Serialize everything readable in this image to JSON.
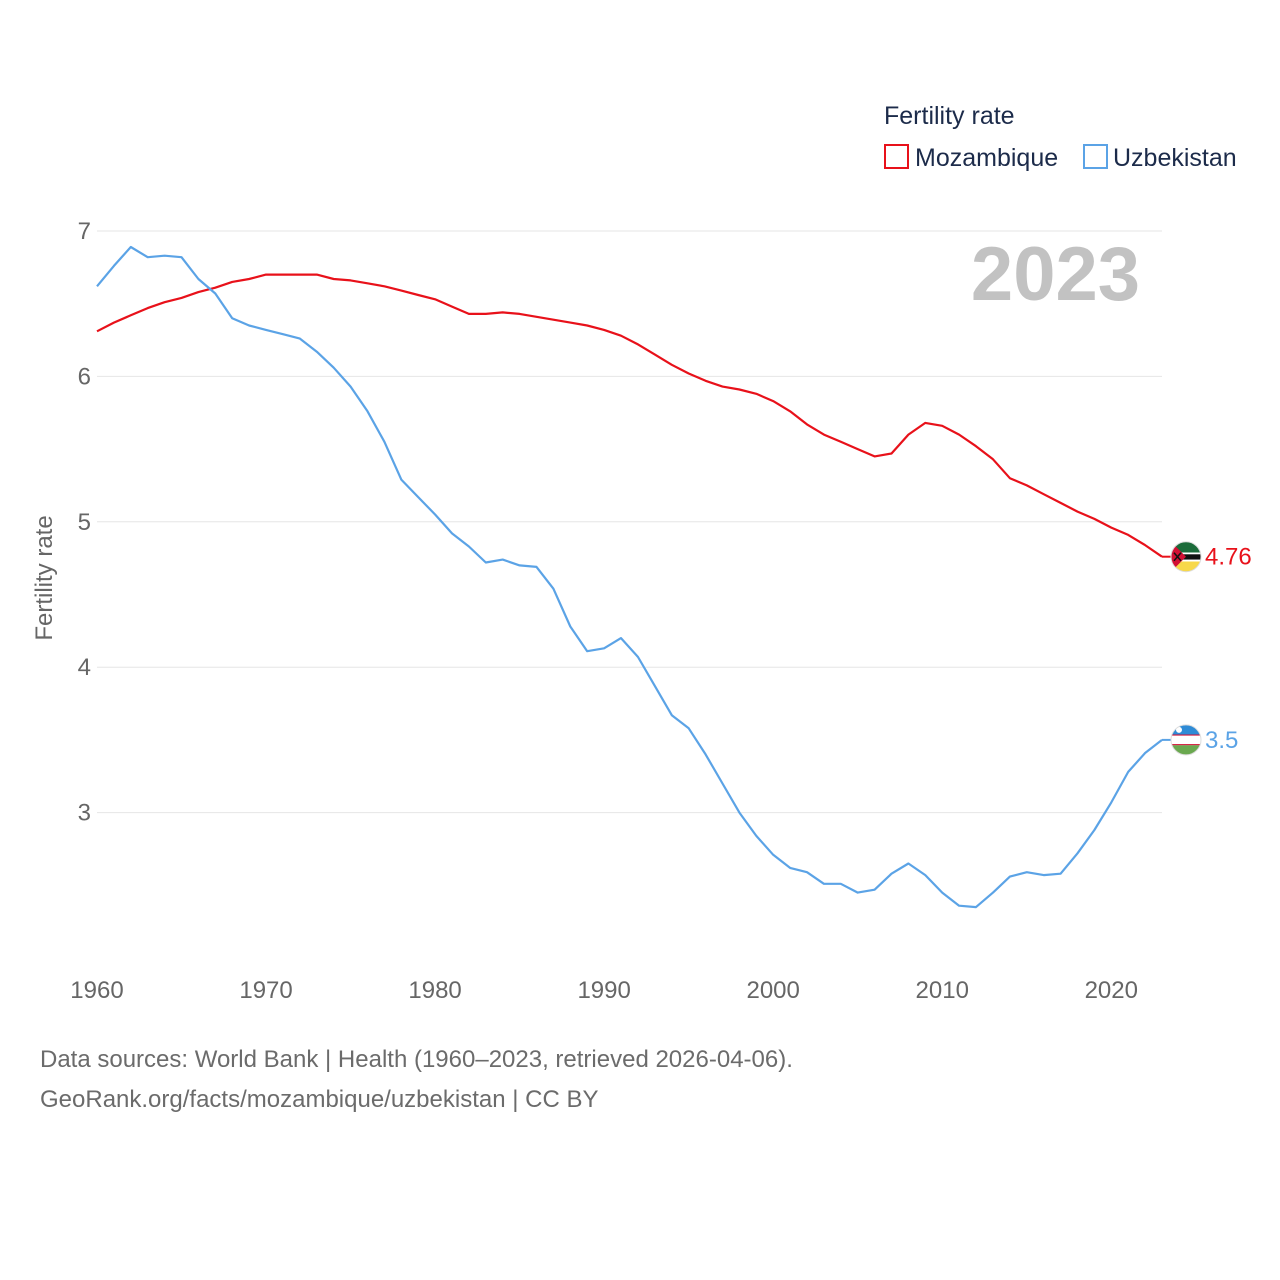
{
  "chart_data": {
    "type": "line",
    "title": "",
    "ylabel": "Fertility rate",
    "xlabel": "",
    "xlim": [
      1960,
      2023
    ],
    "ylim": [
      2,
      7
    ],
    "x_ticks": [
      1960,
      1970,
      1980,
      1990,
      2000,
      2010,
      2020
    ],
    "y_ticks": [
      3,
      4,
      5,
      6,
      7
    ],
    "grid": true,
    "current_year": "2023",
    "legend": {
      "title": "Fertility rate",
      "position": "top-right"
    },
    "x": [
      1960,
      1961,
      1962,
      1963,
      1964,
      1965,
      1966,
      1967,
      1968,
      1969,
      1970,
      1971,
      1972,
      1973,
      1974,
      1975,
      1976,
      1977,
      1978,
      1979,
      1980,
      1981,
      1982,
      1983,
      1984,
      1985,
      1986,
      1987,
      1988,
      1989,
      1990,
      1991,
      1992,
      1993,
      1994,
      1995,
      1996,
      1997,
      1998,
      1999,
      2000,
      2001,
      2002,
      2003,
      2004,
      2005,
      2006,
      2007,
      2008,
      2009,
      2010,
      2011,
      2012,
      2013,
      2014,
      2015,
      2016,
      2017,
      2018,
      2019,
      2020,
      2021,
      2022,
      2023
    ],
    "series": [
      {
        "name": "Mozambique",
        "color": "#e8111a",
        "end_label": "4.76",
        "flag": "mozambique",
        "values": [
          6.31,
          6.37,
          6.42,
          6.47,
          6.51,
          6.54,
          6.58,
          6.61,
          6.65,
          6.67,
          6.7,
          6.7,
          6.7,
          6.7,
          6.67,
          6.66,
          6.64,
          6.62,
          6.59,
          6.56,
          6.53,
          6.48,
          6.43,
          6.43,
          6.44,
          6.43,
          6.41,
          6.39,
          6.37,
          6.35,
          6.32,
          6.28,
          6.22,
          6.15,
          6.08,
          6.02,
          5.97,
          5.93,
          5.91,
          5.88,
          5.83,
          5.76,
          5.67,
          5.6,
          5.55,
          5.5,
          5.45,
          5.47,
          5.6,
          5.68,
          5.66,
          5.6,
          5.52,
          5.43,
          5.3,
          5.25,
          5.19,
          5.13,
          5.07,
          5.02,
          4.96,
          4.91,
          4.84,
          4.76
        ]
      },
      {
        "name": "Uzbekistan",
        "color": "#5ba3e6",
        "end_label": "3.5",
        "flag": "uzbekistan",
        "values": [
          6.62,
          6.76,
          6.89,
          6.82,
          6.83,
          6.82,
          6.67,
          6.57,
          6.4,
          6.35,
          6.32,
          6.29,
          6.26,
          6.17,
          6.06,
          5.93,
          5.76,
          5.55,
          5.29,
          5.17,
          5.05,
          4.92,
          4.83,
          4.72,
          4.74,
          4.7,
          4.69,
          4.54,
          4.28,
          4.11,
          4.13,
          4.2,
          4.07,
          3.87,
          3.67,
          3.58,
          3.4,
          3.2,
          3.0,
          2.84,
          2.71,
          2.62,
          2.59,
          2.51,
          2.51,
          2.45,
          2.47,
          2.58,
          2.65,
          2.57,
          2.45,
          2.36,
          2.35,
          2.45,
          2.56,
          2.59,
          2.57,
          2.58,
          2.72,
          2.88,
          3.07,
          3.28,
          3.41,
          3.5
        ]
      }
    ]
  },
  "footer": {
    "line1": "Data sources: World Bank | Health (1960–2023, retrieved 2026-04-06).",
    "line2": "GeoRank.org/facts/mozambique/uzbekistan | CC BY"
  }
}
